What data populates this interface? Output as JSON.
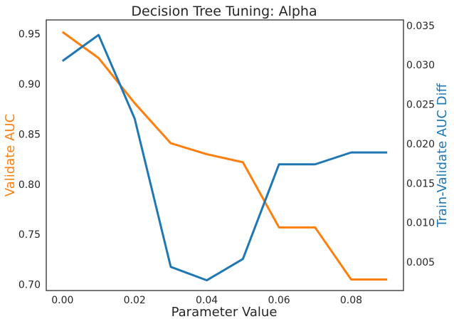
{
  "chart_data": {
    "type": "line",
    "title": "Decision Tree Tuning: Alpha",
    "xlabel": "Parameter Value",
    "ylabel_left": "Validate AUC",
    "ylabel_right": "Train-Validate AUC Diff",
    "x": [
      0.0,
      0.01,
      0.02,
      0.03,
      0.04,
      0.05,
      0.06,
      0.07,
      0.08,
      0.09
    ],
    "xlim": [
      -0.0045,
      0.0945
    ],
    "ylim_left": [
      0.694,
      0.964
    ],
    "ylim_right": [
      0.0014,
      0.0357
    ],
    "x_ticks": [
      "0.00",
      "0.02",
      "0.04",
      "0.06",
      "0.08"
    ],
    "y_ticks_left": [
      "0.70",
      "0.75",
      "0.80",
      "0.85",
      "0.90",
      "0.95"
    ],
    "y_ticks_right": [
      "0.005",
      "0.010",
      "0.015",
      "0.020",
      "0.025",
      "0.030",
      "0.035"
    ],
    "grid": false,
    "series": [
      {
        "name": "Validate AUC",
        "axis": "left",
        "color": "#ff7f0e",
        "values": [
          0.952,
          0.926,
          0.881,
          0.841,
          0.83,
          0.822,
          0.757,
          0.757,
          0.705,
          0.705
        ]
      },
      {
        "name": "Train-Validate AUC Diff",
        "axis": "right",
        "color": "#1f77b4",
        "values": [
          0.0305,
          0.0338,
          0.0232,
          0.0044,
          0.0027,
          0.0054,
          0.0174,
          0.0174,
          0.0189,
          0.0189
        ]
      }
    ]
  }
}
